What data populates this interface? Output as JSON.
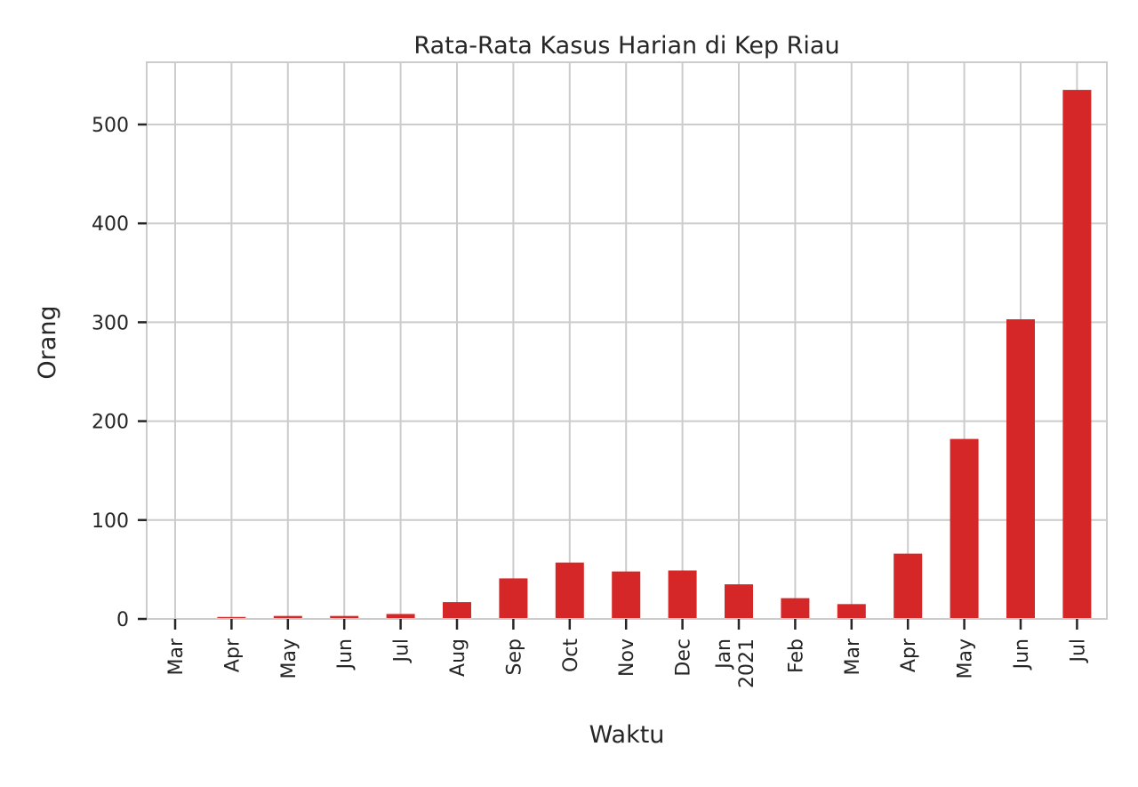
{
  "chart_data": {
    "type": "bar",
    "title": "Rata-Rata Kasus Harian di Kep Riau",
    "xlabel": "Waktu",
    "ylabel": "Orang",
    "categories": [
      {
        "label": "Mar",
        "sublabel": ""
      },
      {
        "label": "Apr",
        "sublabel": ""
      },
      {
        "label": "May",
        "sublabel": ""
      },
      {
        "label": "Jun",
        "sublabel": ""
      },
      {
        "label": "Jul",
        "sublabel": ""
      },
      {
        "label": "Aug",
        "sublabel": ""
      },
      {
        "label": "Sep",
        "sublabel": ""
      },
      {
        "label": "Oct",
        "sublabel": ""
      },
      {
        "label": "Nov",
        "sublabel": ""
      },
      {
        "label": "Dec",
        "sublabel": ""
      },
      {
        "label": "Jan",
        "sublabel": "2021"
      },
      {
        "label": "Feb",
        "sublabel": ""
      },
      {
        "label": "Mar",
        "sublabel": ""
      },
      {
        "label": "Apr",
        "sublabel": ""
      },
      {
        "label": "May",
        "sublabel": ""
      },
      {
        "label": "Jun",
        "sublabel": ""
      },
      {
        "label": "Jul",
        "sublabel": ""
      }
    ],
    "values": [
      0,
      2,
      3,
      3,
      5,
      17,
      41,
      57,
      48,
      49,
      35,
      21,
      15,
      66,
      182,
      303,
      535
    ],
    "ylim": [
      0,
      560
    ],
    "yticks": [
      0,
      100,
      200,
      300,
      400,
      500
    ],
    "bar_color": "#d62728",
    "grid": true
  }
}
